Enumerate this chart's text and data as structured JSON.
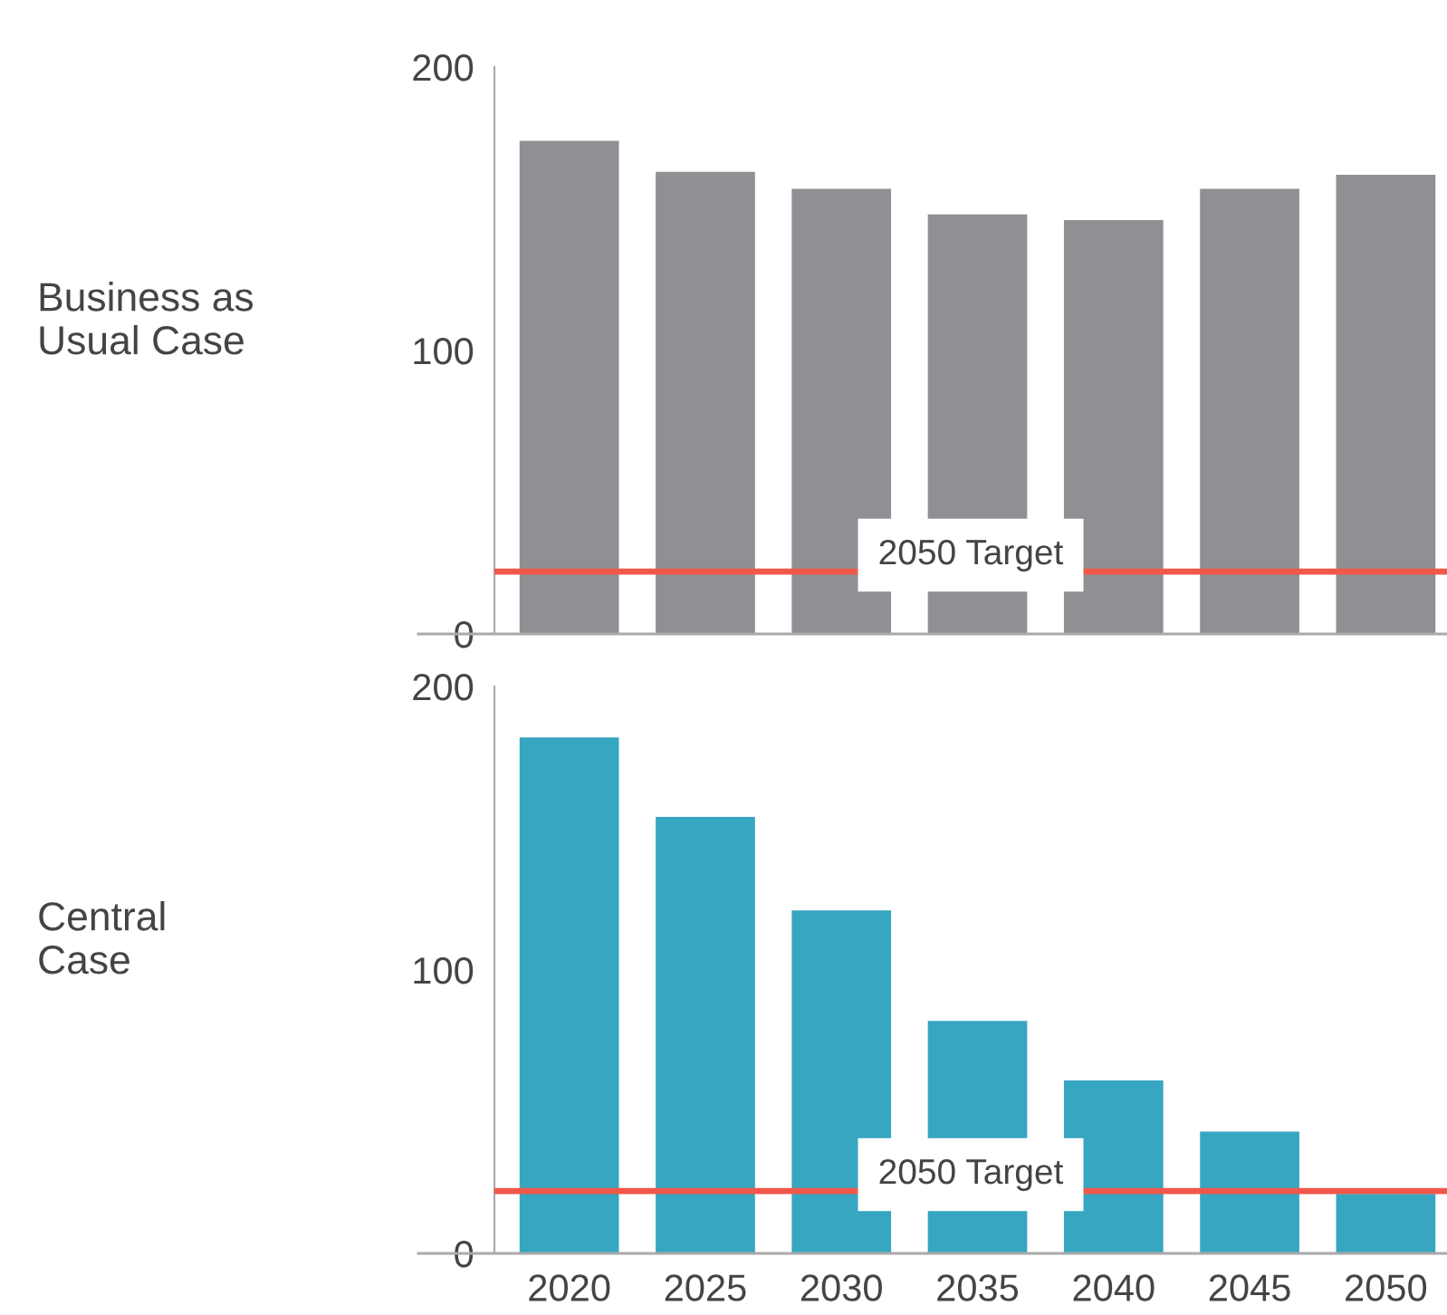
{
  "chart_data": [
    {
      "type": "bar",
      "ylabel": "Business as\nUsual Case",
      "categories": [
        "2020",
        "2025",
        "2030",
        "2035",
        "2040",
        "2045",
        "2050"
      ],
      "values": [
        174,
        163,
        157,
        148,
        146,
        157,
        162
      ],
      "color": "#8e9093",
      "ylim": [
        0,
        200
      ],
      "yticks": [
        0,
        100,
        200
      ],
      "tick_labels": "y",
      "grid": false,
      "ref_lines": [
        {
          "axis": "y",
          "value": 22,
          "label": "2050 Target",
          "color": "#f0584a"
        }
      ]
    },
    {
      "type": "bar",
      "ylabel": "Central\nCase",
      "categories": [
        "2020",
        "2025",
        "2030",
        "2035",
        "2040",
        "2045",
        "2050"
      ],
      "values": [
        182,
        154,
        121,
        82,
        61,
        43,
        21
      ],
      "color": "#37a6c0",
      "ylim": [
        0,
        200
      ],
      "yticks": [
        0,
        100,
        200
      ],
      "grid": false,
      "ref_lines": [
        {
          "axis": "y",
          "value": 22,
          "label": "2050 Target",
          "color": "#f0584a"
        }
      ]
    }
  ]
}
